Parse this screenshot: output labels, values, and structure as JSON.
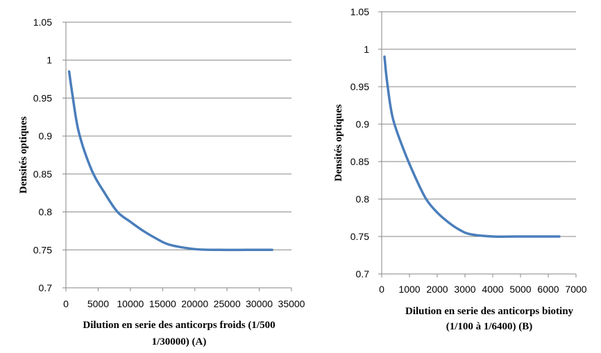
{
  "chart_data": [
    {
      "type": "line",
      "xlabel_lines": [
        "Dilution en serie des anticorps froids  (1/500",
        "1/30000) (A)"
      ],
      "ylabel": "Densités optiques",
      "xlim": [
        0,
        35000
      ],
      "ylim": [
        0.7,
        1.05
      ],
      "xticks": [
        0,
        5000,
        10000,
        15000,
        20000,
        25000,
        30000,
        35000
      ],
      "yticks": [
        "0.7",
        "0.75",
        "0.8",
        "0.85",
        "0.9",
        "0.95",
        "1",
        "1.05"
      ],
      "grid": "horizontal",
      "line_color": "#4a7ebb",
      "x": [
        500,
        1000,
        2000,
        4000,
        6000,
        8000,
        10000,
        12000,
        14000,
        16000,
        20000,
        24000,
        28000,
        32000
      ],
      "y": [
        0.985,
        0.955,
        0.905,
        0.855,
        0.825,
        0.8,
        0.787,
        0.775,
        0.765,
        0.757,
        0.751,
        0.75,
        0.75,
        0.75
      ]
    },
    {
      "type": "line",
      "xlabel_lines": [
        "Dilution en serie des anticorps biotiny",
        "(1/100  à 1/6400)   (B)"
      ],
      "ylabel": "Densités optiques",
      "xlim": [
        0,
        7000
      ],
      "ylim": [
        0.7,
        1.05
      ],
      "xticks": [
        0,
        1000,
        2000,
        3000,
        4000,
        5000,
        6000,
        7000
      ],
      "yticks": [
        "0.7",
        "0.75",
        "0.8",
        "0.85",
        "0.9",
        "0.95",
        "1",
        "1.05"
      ],
      "grid": "horizontal",
      "line_color": "#4a7ebb",
      "x": [
        100,
        200,
        400,
        800,
        1200,
        1600,
        2000,
        2400,
        2800,
        3200,
        4000,
        4800,
        5600,
        6400
      ],
      "y": [
        0.99,
        0.955,
        0.908,
        0.865,
        0.83,
        0.8,
        0.782,
        0.769,
        0.759,
        0.753,
        0.75,
        0.75,
        0.75,
        0.75
      ]
    }
  ]
}
